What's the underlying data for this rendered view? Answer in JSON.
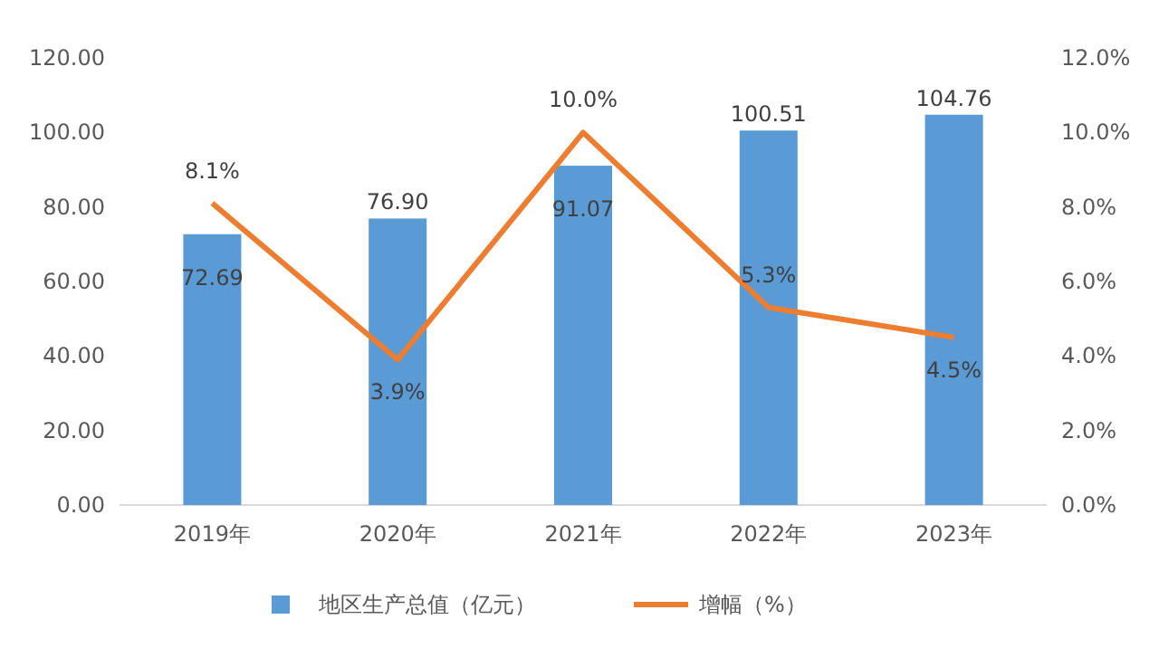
{
  "chart_data": {
    "type": "bar",
    "categories": [
      "2019年",
      "2020年",
      "2021年",
      "2022年",
      "2023年"
    ],
    "series": [
      {
        "name": "地区生产总值（亿元）",
        "type": "bar",
        "color": "#5b9bd5",
        "values": [
          72.69,
          76.9,
          91.07,
          100.51,
          104.76
        ],
        "value_labels": [
          "72.69",
          "76.90",
          "91.07",
          "100.51",
          "104.76"
        ]
      },
      {
        "name": "增幅（%）",
        "type": "line",
        "axis": "y2",
        "color": "#ed7d31",
        "values": [
          8.1,
          3.9,
          10.0,
          5.3,
          4.5
        ],
        "value_labels": [
          "8.1%",
          "3.9%",
          "10.0%",
          "5.3%",
          "4.5%"
        ]
      }
    ],
    "ylim": [
      0,
      120
    ],
    "yticks": [
      {
        "value": 0,
        "label": "0.00"
      },
      {
        "value": 20,
        "label": "20.00"
      },
      {
        "value": 40,
        "label": "40.00"
      },
      {
        "value": 60,
        "label": "60.00"
      },
      {
        "value": 80,
        "label": "80.00"
      },
      {
        "value": 100,
        "label": "100.00"
      },
      {
        "value": 120,
        "label": "120.00"
      }
    ],
    "y2lim": [
      0,
      12
    ],
    "y2ticks": [
      {
        "value": 0,
        "label": "0.0%"
      },
      {
        "value": 2,
        "label": "2.0%"
      },
      {
        "value": 4,
        "label": "4.0%"
      },
      {
        "value": 6,
        "label": "6.0%"
      },
      {
        "value": 8,
        "label": "8.0%"
      },
      {
        "value": 10,
        "label": "10.0%"
      },
      {
        "value": 12,
        "label": "12.0%"
      }
    ],
    "legend": "bottom",
    "marker": "none",
    "line_style": "solid"
  }
}
